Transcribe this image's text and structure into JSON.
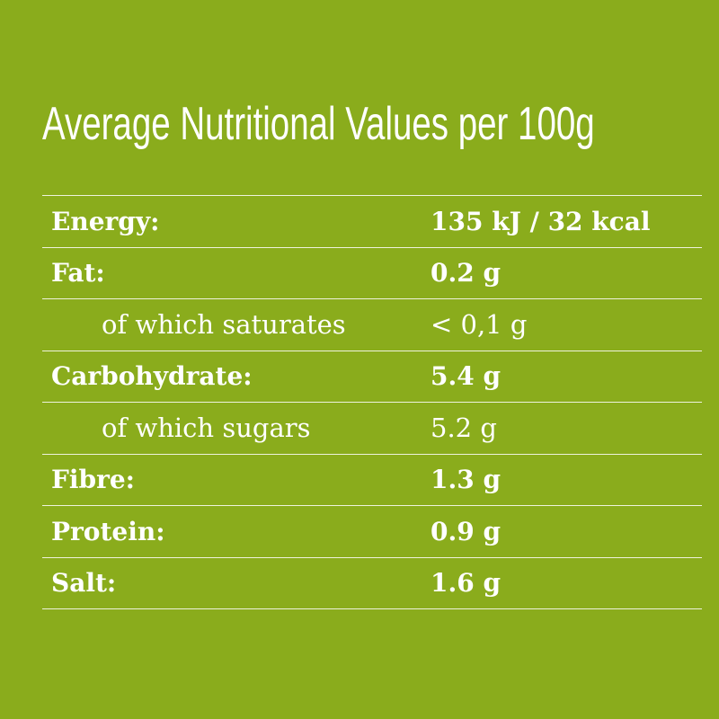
{
  "title": "Average Nutritional Values per 100g",
  "colors": {
    "background": "#8aac1c",
    "text": "#ffffff",
    "rule": "#ffffff"
  },
  "rows": [
    {
      "label": "Energy:",
      "value": "135 kJ / 32 kcal",
      "bold": true,
      "indent": false
    },
    {
      "label": "Fat:",
      "value": "0.2 g",
      "bold": true,
      "indent": false
    },
    {
      "label": "of which saturates",
      "value": "< 0,1 g",
      "bold": false,
      "indent": true
    },
    {
      "label": "Carbohydrate:",
      "value": "5.4 g",
      "bold": true,
      "indent": false
    },
    {
      "label": "of which sugars",
      "value": "5.2 g",
      "bold": false,
      "indent": true
    },
    {
      "label": "Fibre:",
      "value": "1.3 g",
      "bold": true,
      "indent": false
    },
    {
      "label": "Protein:",
      "value": "0.9 g",
      "bold": true,
      "indent": false
    },
    {
      "label": "Salt:",
      "value": "1.6 g",
      "bold": true,
      "indent": false
    }
  ]
}
